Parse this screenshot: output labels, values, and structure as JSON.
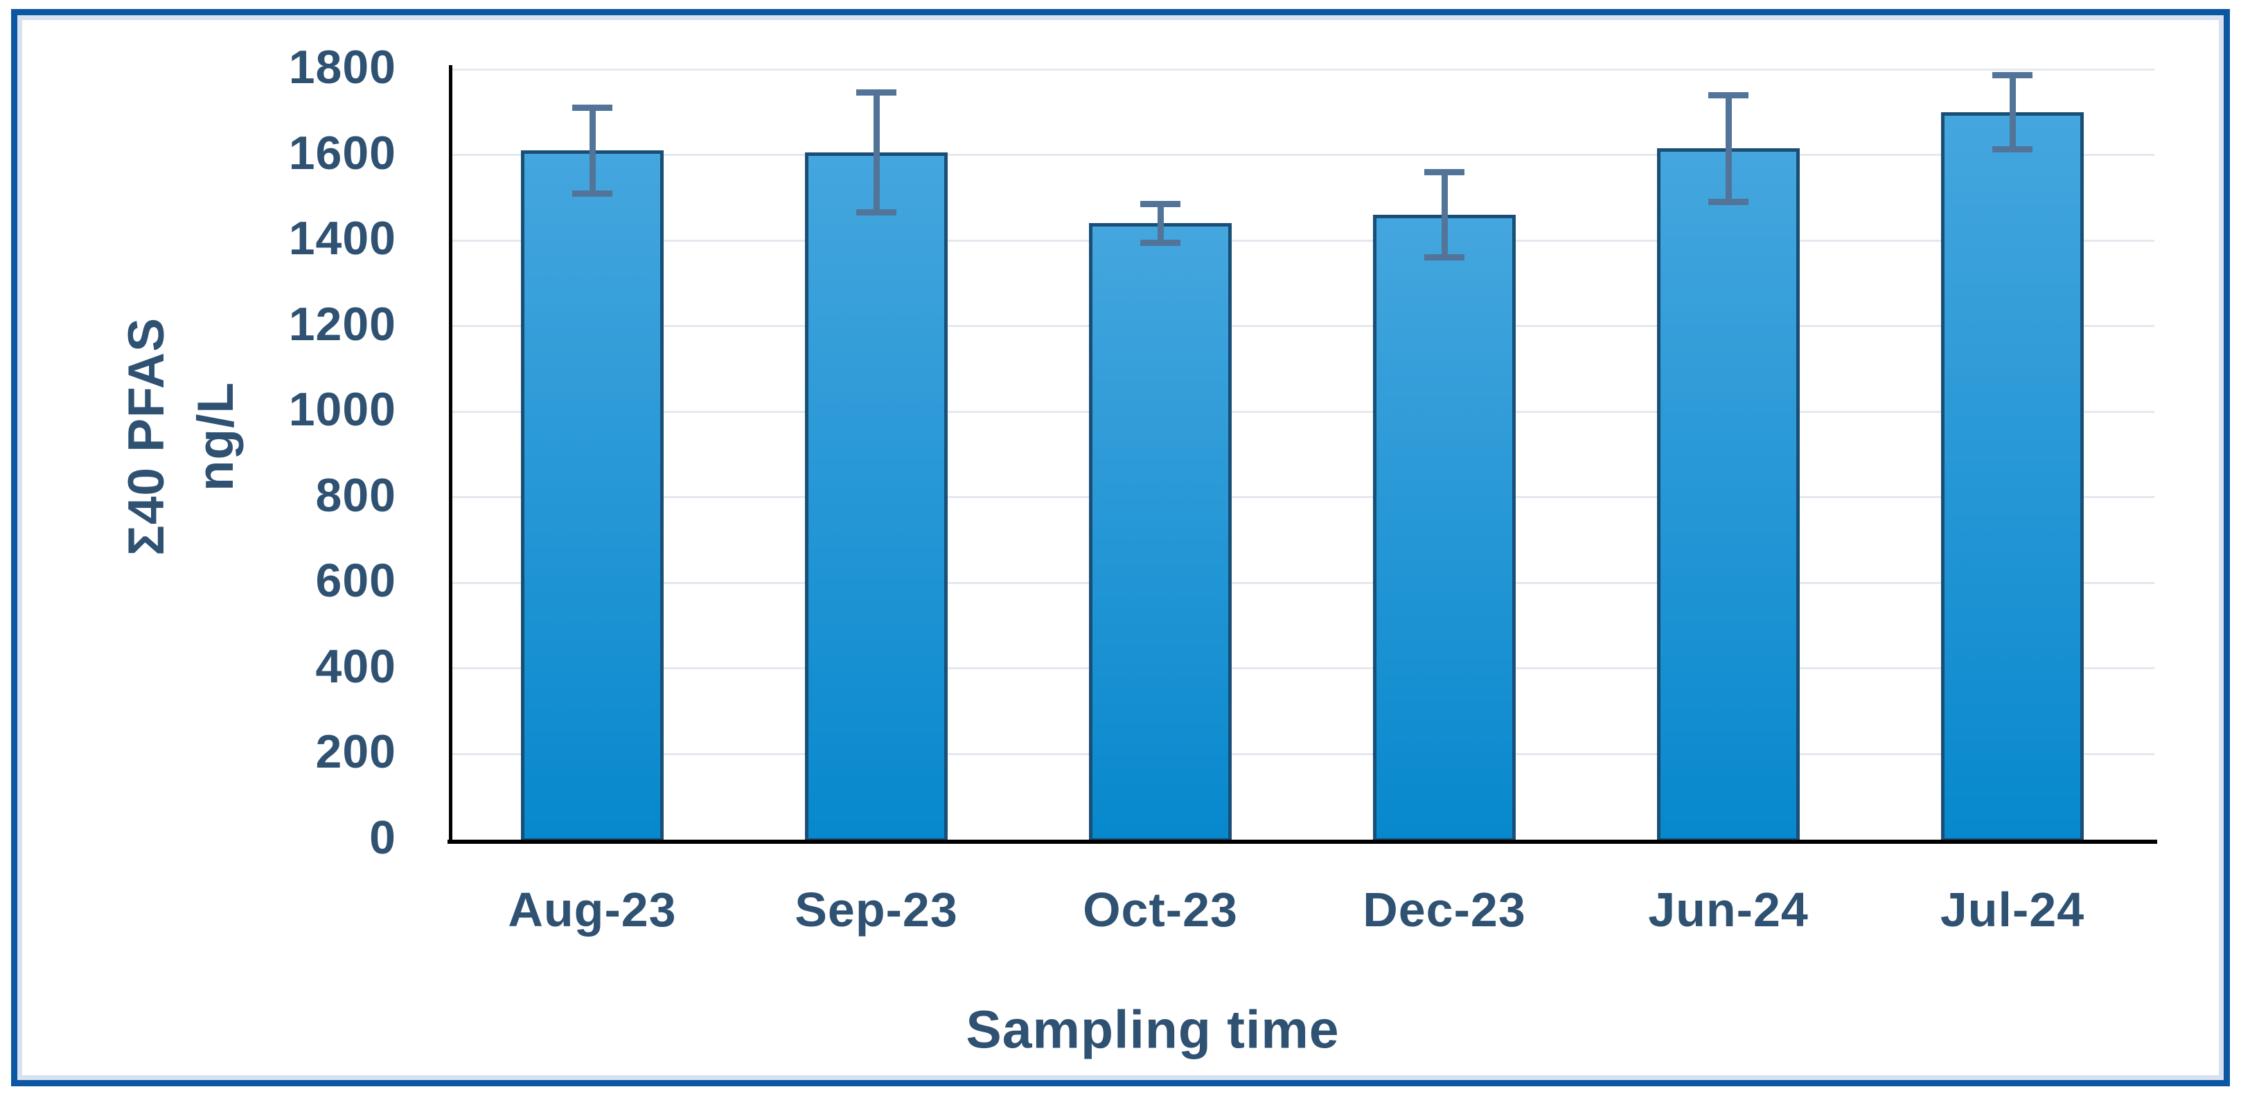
{
  "figure": {
    "x_axis_title": "Sampling time",
    "y_axis_title_line1": "Σ40 PFAS",
    "y_axis_title_line2": "ng/L"
  },
  "colors": {
    "background": "#ffffff",
    "frame_border": "#0c57a2",
    "frame_inner_stripe": "#d8e1f0",
    "gridline": "#e4e8ef",
    "axis_line": "#000000",
    "bar_fill_top": "#45a6de",
    "bar_fill_bottom": "#0788cd",
    "bar_border": "#194e77",
    "error_bar": "#527499",
    "text": "#2f5172"
  },
  "chart_data": {
    "type": "bar",
    "categories": [
      "Aug-23",
      "Sep-23",
      "Oct-23",
      "Dec-23",
      "Jun-24",
      "Jul-24"
    ],
    "values": [
      1610,
      1605,
      1440,
      1460,
      1615,
      1700
    ],
    "error_bars": [
      100,
      140,
      45,
      100,
      125,
      87
    ],
    "title": "",
    "xlabel": "Sampling time",
    "ylabel": "Σ40 PFAS ng/L",
    "ylim": [
      0,
      1800
    ],
    "ytick_interval": 200,
    "ytick_labels": [
      "0",
      "200",
      "400",
      "600",
      "800",
      "1000",
      "1200",
      "1400",
      "1600",
      "1800"
    ],
    "grid": true,
    "legend": false
  }
}
